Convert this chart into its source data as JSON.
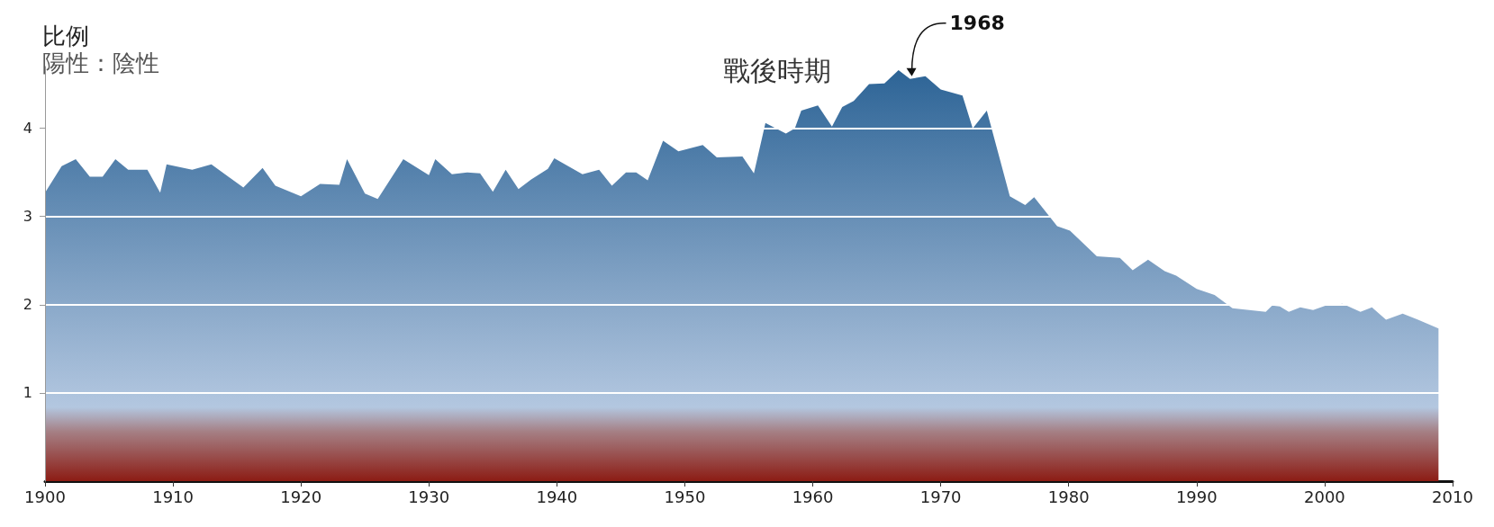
{
  "chart_data": {
    "type": "area",
    "title": "比例",
    "subtitle": "陽性：陰性",
    "x": [
      1900,
      1901.3,
      1902.4,
      1903.5,
      1904.5,
      1905.5,
      1906.5,
      1908,
      1909,
      1909.5,
      1911.5,
      1913,
      1915.5,
      1917,
      1918,
      1920,
      1921.5,
      1923,
      1923.6,
      1925,
      1926,
      1928,
      1930,
      1930.5,
      1931.8,
      1933,
      1934,
      1935,
      1936,
      1937,
      1938,
      1939.3,
      1939.8,
      1942,
      1943.3,
      1944.3,
      1945.4,
      1946.2,
      1947.1,
      1948.3,
      1949.5,
      1951.4,
      1952.5,
      1954.5,
      1955.4,
      1956.3,
      1957.9,
      1958.6,
      1959.1,
      1960.4,
      1961.5,
      1962.3,
      1963.2,
      1964.4,
      1965.6,
      1966.7,
      1967.6,
      1968.8,
      1970,
      1971.7,
      1972.5,
      1973.6,
      1975.4,
      1976.6,
      1977.3,
      1979.1,
      1980.1,
      1982.2,
      1984,
      1985,
      1986.2,
      1987.5,
      1988.4,
      1990,
      1991.4,
      1992.8,
      1995.4,
      1995.9,
      1996.5,
      1997.2,
      1998.1,
      1999.1,
      2000.1,
      2001.4,
      2002.8,
      2003.7,
      2004.8,
      2006.1,
      2007.3,
      2008.9
    ],
    "series": [
      {
        "color": "#2d6496",
        "values": [
          3.27,
          3.57,
          3.65,
          3.45,
          3.45,
          3.65,
          3.53,
          3.53,
          3.27,
          3.59,
          3.53,
          3.59,
          3.33,
          3.55,
          3.35,
          3.23,
          3.37,
          3.36,
          3.65,
          3.26,
          3.2,
          3.65,
          3.47,
          3.65,
          3.48,
          3.5,
          3.49,
          3.28,
          3.53,
          3.31,
          3.42,
          3.54,
          3.66,
          3.48,
          3.53,
          3.35,
          3.5,
          3.5,
          3.41,
          3.86,
          3.74,
          3.81,
          3.67,
          3.68,
          3.49,
          4.06,
          3.94,
          4.0,
          4.2,
          4.26,
          4.02,
          4.24,
          4.31,
          4.5,
          4.51,
          4.66,
          4.56,
          4.59,
          4.44,
          4.37,
          4.0,
          4.2,
          3.23,
          3.13,
          3.22,
          2.89,
          2.84,
          2.55,
          2.53,
          2.39,
          2.51,
          2.38,
          2.33,
          2.18,
          2.11,
          1.96,
          1.92,
          1.99,
          1.98,
          1.92,
          1.97,
          1.94,
          1.99,
          2.01,
          1.92,
          1.97,
          1.83,
          1.9,
          1.83,
          1.73
        ]
      }
    ],
    "xlim": [
      1900,
      2010
    ],
    "xticks": [
      1900,
      1910,
      1920,
      1930,
      1940,
      1950,
      1960,
      1970,
      1980,
      1990,
      2000,
      2010
    ],
    "ylim": [
      0,
      4.7
    ],
    "yticks": [
      1,
      2,
      3,
      4
    ],
    "grid": "y",
    "annotations": [
      "戰後時期",
      {
        "text": "1968",
        "x": 1967.6,
        "y": 4.56
      }
    ]
  }
}
